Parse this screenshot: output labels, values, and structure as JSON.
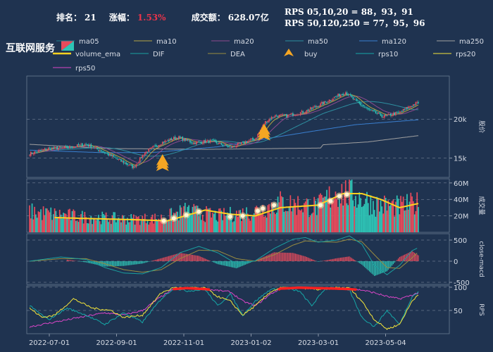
{
  "header": {
    "rank_label": "排名：",
    "rank_value": "21",
    "change_label": "涨幅：",
    "change_value": "1.53%",
    "turnover_label": "成交额：",
    "turnover_value": "628.07亿",
    "rps_short": "RPS 05,10,20 = 88，93，91",
    "rps_long": "RPS 50,120,250 = 77，95，96",
    "sector_name": "互联网服务"
  },
  "colors": {
    "background": "#1f3350",
    "up": "#e84b5c",
    "down": "#2ec4b6",
    "change_value": "#e8344a",
    "ma05": "#1e7f8f",
    "ma10": "#b5a545",
    "ma20": "#8e4a8e",
    "ma50": "#2e8fa0",
    "ma120": "#3a7fd0",
    "ma250": "#a0a0a0",
    "volume_ema": "#ffd21f",
    "dif": "#1aa0a0",
    "dea": "#9a8d40",
    "buy": "#f5a623",
    "rps10": "#15a7a7",
    "rps20": "#f5e63a",
    "rps50": "#d946c7"
  },
  "legend": [
    {
      "label": "ma05",
      "color": "#1e7f8f",
      "kind": "line"
    },
    {
      "label": "ma10",
      "color": "#b5a545",
      "kind": "line"
    },
    {
      "label": "ma20",
      "color": "#8e4a8e",
      "kind": "line"
    },
    {
      "label": "ma50",
      "color": "#2e8fa0",
      "kind": "line"
    },
    {
      "label": "ma120",
      "color": "#3a7fd0",
      "kind": "line"
    },
    {
      "label": "ma250",
      "color": "#a0a0a0",
      "kind": "line"
    },
    {
      "label": "volume_ema",
      "color": "#ffd21f",
      "kind": "thick"
    },
    {
      "label": "DIF",
      "color": "#1aa0a0",
      "kind": "line"
    },
    {
      "label": "DEA",
      "color": "#9a8d40",
      "kind": "line"
    },
    {
      "label": "buy",
      "color": "#f5a623",
      "kind": "marker"
    },
    {
      "label": "rps10",
      "color": "#15a7a7",
      "kind": "line"
    },
    {
      "label": "rps20",
      "color": "#f5e63a",
      "kind": "line"
    },
    {
      "label": "rps50",
      "color": "#d946c7",
      "kind": "line"
    }
  ],
  "chart_data": [
    {
      "type": "candlestick",
      "panel": "price",
      "ylabel": "股价",
      "yscale": "log",
      "ylim": [
        13000,
        27500
      ],
      "yticks": [
        15000,
        20000
      ],
      "ytick_labels": [
        "15k",
        "20k"
      ],
      "x_dates": [
        "2022-07-01",
        "2022-09-01",
        "2022-11-01",
        "2023-01-02",
        "2023-03-01",
        "2023-05-04"
      ],
      "close_anchors": [
        [
          0,
          15500
        ],
        [
          15,
          16100
        ],
        [
          30,
          16200
        ],
        [
          45,
          16600
        ],
        [
          60,
          15600
        ],
        [
          75,
          14500
        ],
        [
          83,
          14000
        ],
        [
          92,
          15600
        ],
        [
          105,
          16800
        ],
        [
          118,
          17500
        ],
        [
          130,
          16800
        ],
        [
          145,
          17000
        ],
        [
          160,
          16200
        ],
        [
          172,
          16900
        ],
        [
          180,
          17300
        ],
        [
          188,
          19600
        ],
        [
          195,
          20500
        ],
        [
          205,
          20500
        ],
        [
          220,
          21200
        ],
        [
          235,
          22600
        ],
        [
          245,
          23700
        ],
        [
          252,
          24400
        ],
        [
          260,
          22800
        ],
        [
          270,
          21400
        ],
        [
          282,
          20400
        ],
        [
          295,
          21000
        ],
        [
          305,
          22200
        ],
        [
          310,
          22600
        ]
      ],
      "ma250_anchors": [
        [
          0,
          16600
        ],
        [
          60,
          16100
        ],
        [
          140,
          16000
        ],
        [
          232,
          16150
        ],
        [
          234,
          16550
        ],
        [
          270,
          16900
        ],
        [
          310,
          17700
        ]
      ],
      "ma120_anchors": [
        [
          0,
          15900
        ],
        [
          60,
          15600
        ],
        [
          100,
          15650
        ],
        [
          150,
          16300
        ],
        [
          200,
          17600
        ],
        [
          260,
          19200
        ],
        [
          310,
          19900
        ]
      ],
      "buy_signals": [
        {
          "x": 106,
          "price": 14200
        },
        {
          "x": 187,
          "price": 17800
        }
      ]
    },
    {
      "type": "bar",
      "panel": "volume",
      "ylabel": "成交量",
      "ylim": [
        0,
        65000000
      ],
      "yticks": [
        20000000,
        40000000,
        60000000
      ],
      "ytick_labels": [
        "20M",
        "40M",
        "60M"
      ],
      "volume_anchors": [
        [
          0,
          25
        ],
        [
          40,
          19
        ],
        [
          80,
          16
        ],
        [
          105,
          17
        ],
        [
          125,
          26
        ],
        [
          150,
          20
        ],
        [
          175,
          24
        ],
        [
          200,
          36
        ],
        [
          230,
          31
        ],
        [
          245,
          50
        ],
        [
          260,
          45
        ],
        [
          275,
          34
        ],
        [
          295,
          31
        ],
        [
          310,
          35
        ]
      ],
      "volume_ema_anchors": [
        [
          0,
          19
        ],
        [
          40,
          17
        ],
        [
          80,
          15.5
        ],
        [
          110,
          14
        ],
        [
          140,
          27
        ],
        [
          160,
          22
        ],
        [
          180,
          20
        ],
        [
          200,
          30
        ],
        [
          230,
          33
        ],
        [
          250,
          47
        ],
        [
          265,
          47
        ],
        [
          280,
          40
        ],
        [
          295,
          30
        ],
        [
          310,
          35
        ]
      ],
      "volume_unit": "M",
      "highlight_points": [
        [
          107,
          14
        ],
        [
          115,
          17
        ],
        [
          125,
          21
        ],
        [
          135,
          25
        ],
        [
          160,
          19
        ],
        [
          170,
          20
        ],
        [
          182,
          26
        ],
        [
          186,
          29
        ],
        [
          195,
          33
        ],
        [
          232,
          33
        ],
        [
          240,
          38
        ],
        [
          247,
          44
        ],
        [
          253,
          46
        ]
      ]
    },
    {
      "type": "bar",
      "panel": "macd",
      "ylabel": "close-macd",
      "ylim": [
        -550,
        650
      ],
      "yticks": [
        -500,
        0,
        500
      ],
      "ytick_labels": [
        "-500",
        "0",
        "500"
      ],
      "dif_anchors": [
        [
          0,
          0
        ],
        [
          25,
          100
        ],
        [
          45,
          40
        ],
        [
          60,
          -150
        ],
        [
          75,
          -280
        ],
        [
          90,
          -300
        ],
        [
          105,
          -150
        ],
        [
          120,
          200
        ],
        [
          135,
          350
        ],
        [
          150,
          200
        ],
        [
          165,
          -60
        ],
        [
          180,
          10
        ],
        [
          195,
          300
        ],
        [
          210,
          520
        ],
        [
          220,
          560
        ],
        [
          230,
          450
        ],
        [
          245,
          500
        ],
        [
          255,
          600
        ],
        [
          265,
          400
        ],
        [
          275,
          -100
        ],
        [
          285,
          -320
        ],
        [
          295,
          -100
        ],
        [
          305,
          250
        ],
        [
          310,
          320
        ]
      ],
      "dea_anchors": [
        [
          0,
          0
        ],
        [
          25,
          60
        ],
        [
          45,
          60
        ],
        [
          60,
          -60
        ],
        [
          75,
          -200
        ],
        [
          90,
          -260
        ],
        [
          105,
          -200
        ],
        [
          120,
          60
        ],
        [
          135,
          260
        ],
        [
          150,
          250
        ],
        [
          165,
          60
        ],
        [
          180,
          0
        ],
        [
          195,
          150
        ],
        [
          210,
          380
        ],
        [
          220,
          480
        ],
        [
          230,
          460
        ],
        [
          245,
          450
        ],
        [
          255,
          520
        ],
        [
          265,
          460
        ],
        [
          275,
          150
        ],
        [
          285,
          -150
        ],
        [
          295,
          -170
        ],
        [
          305,
          80
        ],
        [
          310,
          220
        ]
      ]
    },
    {
      "type": "line",
      "panel": "rps",
      "ylabel": "RPS",
      "ylim": [
        0,
        103
      ],
      "yticks": [
        50,
        100
      ],
      "ytick_labels": [
        "50",
        "100"
      ],
      "rps10_anchors": [
        [
          0,
          60
        ],
        [
          15,
          30
        ],
        [
          30,
          55
        ],
        [
          45,
          40
        ],
        [
          60,
          20
        ],
        [
          75,
          45
        ],
        [
          90,
          25
        ],
        [
          105,
          75
        ],
        [
          115,
          98
        ],
        [
          125,
          92
        ],
        [
          140,
          95
        ],
        [
          150,
          60
        ],
        [
          160,
          85
        ],
        [
          170,
          40
        ],
        [
          180,
          70
        ],
        [
          192,
          95
        ],
        [
          200,
          98
        ],
        [
          215,
          92
        ],
        [
          225,
          60
        ],
        [
          235,
          95
        ],
        [
          245,
          99
        ],
        [
          255,
          94
        ],
        [
          265,
          35
        ],
        [
          275,
          15
        ],
        [
          285,
          50
        ],
        [
          295,
          20
        ],
        [
          305,
          80
        ],
        [
          310,
          90
        ]
      ],
      "rps20_anchors": [
        [
          0,
          55
        ],
        [
          10,
          35
        ],
        [
          20,
          40
        ],
        [
          35,
          75
        ],
        [
          50,
          55
        ],
        [
          65,
          50
        ],
        [
          75,
          35
        ],
        [
          90,
          40
        ],
        [
          105,
          88
        ],
        [
          115,
          99
        ],
        [
          125,
          99
        ],
        [
          140,
          98
        ],
        [
          150,
          80
        ],
        [
          160,
          70
        ],
        [
          170,
          40
        ],
        [
          180,
          60
        ],
        [
          192,
          90
        ],
        [
          200,
          99
        ],
        [
          215,
          99
        ],
        [
          230,
          95
        ],
        [
          245,
          99
        ],
        [
          255,
          98
        ],
        [
          265,
          70
        ],
        [
          275,
          30
        ],
        [
          285,
          10
        ],
        [
          295,
          20
        ],
        [
          305,
          70
        ],
        [
          310,
          85
        ]
      ],
      "rps50_anchors": [
        [
          0,
          15
        ],
        [
          20,
          25
        ],
        [
          40,
          35
        ],
        [
          60,
          45
        ],
        [
          75,
          40
        ],
        [
          90,
          50
        ],
        [
          105,
          80
        ],
        [
          115,
          96
        ],
        [
          125,
          98
        ],
        [
          140,
          96
        ],
        [
          150,
          93
        ],
        [
          160,
          90
        ],
        [
          170,
          70
        ],
        [
          180,
          60
        ],
        [
          192,
          85
        ],
        [
          200,
          97
        ],
        [
          215,
          99
        ],
        [
          230,
          98
        ],
        [
          245,
          97
        ],
        [
          255,
          96
        ],
        [
          265,
          94
        ],
        [
          275,
          88
        ],
        [
          285,
          80
        ],
        [
          295,
          75
        ],
        [
          305,
          83
        ],
        [
          310,
          88
        ]
      ],
      "strong_threshold": 95
    }
  ]
}
